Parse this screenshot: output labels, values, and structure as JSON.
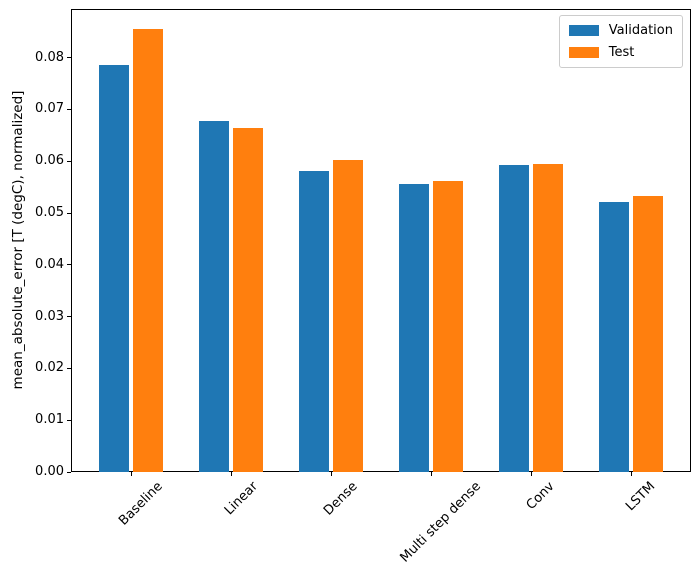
{
  "figure": {
    "ylabel": "mean_absolute_error [T (degC), normalized]"
  },
  "colors": {
    "validation": "#1f77b4",
    "test": "#ff7f0e",
    "axis": "#000000",
    "legend_border": "#cccccc",
    "background": "#ffffff"
  },
  "legend": {
    "items": [
      {
        "label": "Validation",
        "color": "#1f77b4"
      },
      {
        "label": "Test",
        "color": "#ff7f0e"
      }
    ]
  },
  "chart_data": {
    "type": "bar",
    "categories": [
      "Baseline",
      "Linear",
      "Dense",
      "Multi step dense",
      "Conv",
      "LSTM"
    ],
    "series": [
      {
        "name": "Validation",
        "color": "#1f77b4",
        "values": [
          0.0785,
          0.0678,
          0.0581,
          0.0557,
          0.0593,
          0.0521
        ]
      },
      {
        "name": "Test",
        "color": "#ff7f0e",
        "values": [
          0.0855,
          0.0664,
          0.0603,
          0.0561,
          0.0595,
          0.0532
        ]
      }
    ],
    "title": "",
    "xlabel": "",
    "ylabel": "mean_absolute_error [T (degC), normalized]",
    "ylim": [
      0,
      0.0894
    ],
    "yticks": [
      0,
      0.01,
      0.02,
      0.03,
      0.04,
      0.05,
      0.06,
      0.07,
      0.08
    ],
    "ytick_labels": [
      "0.00",
      "0.01",
      "0.02",
      "0.03",
      "0.04",
      "0.05",
      "0.06",
      "0.07",
      "0.08"
    ],
    "xtick_rotation": 45,
    "grid": false,
    "legend_position": "upper right",
    "bar_width": 0.3
  }
}
